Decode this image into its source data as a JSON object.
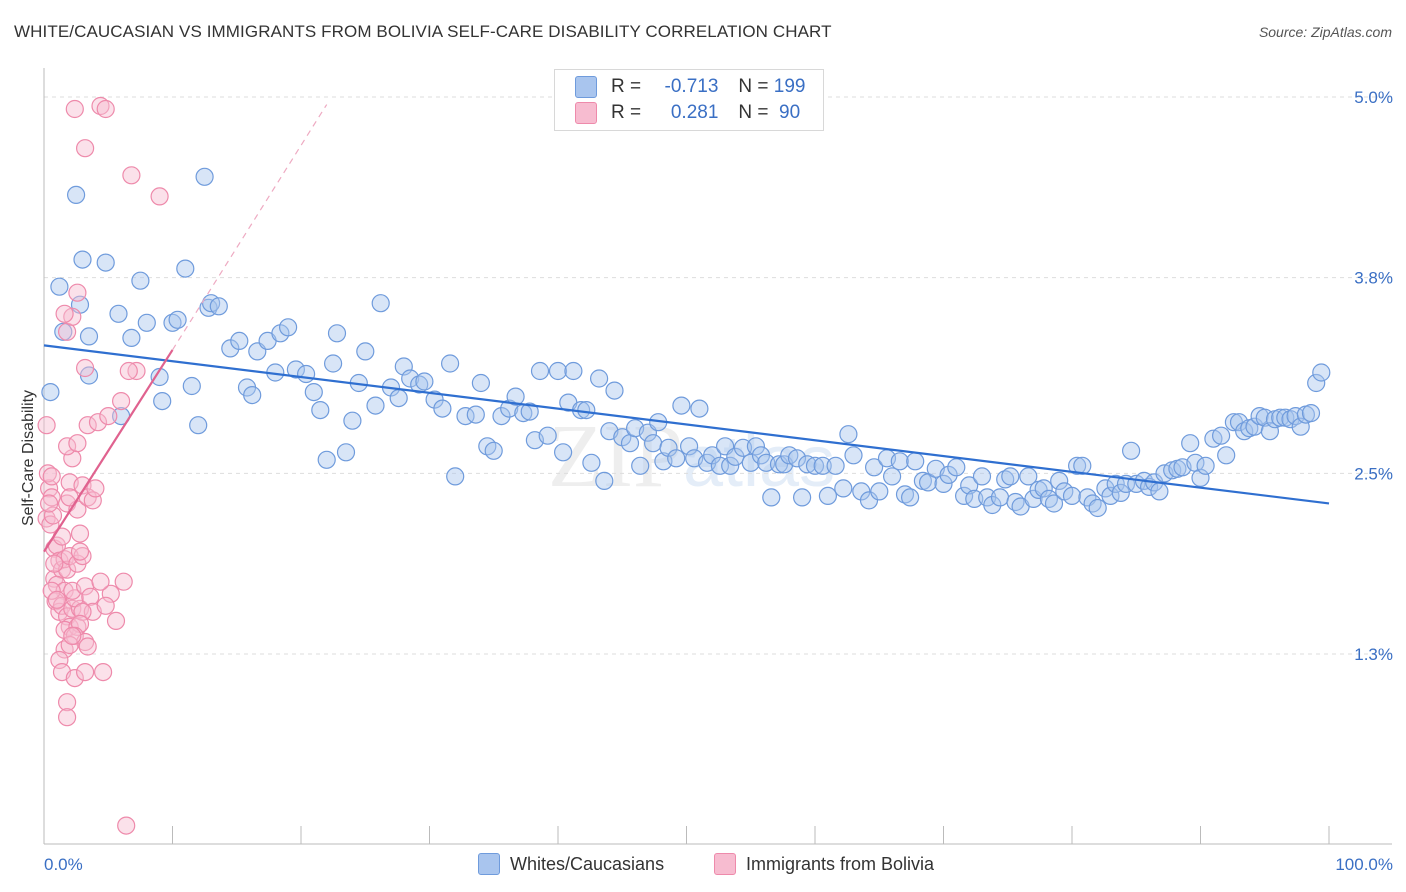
{
  "title": "WHITE/CAUCASIAN VS IMMIGRANTS FROM BOLIVIA SELF-CARE DISABILITY CORRELATION CHART",
  "source": "Source: ZipAtlas.com",
  "watermark": {
    "zip": "ZIP",
    "atlas": "atlas"
  },
  "legend": {
    "rows": [
      {
        "r_label": "R =",
        "r_value": "-0.713",
        "n_label": "N =",
        "n_value": "199",
        "color": "#a9c5ee",
        "border": "#6f9bdc"
      },
      {
        "r_label": "R =",
        "r_value": " 0.281",
        "n_label": "N =",
        "n_value": " 90",
        "color": "#f7bcd0",
        "border": "#ee8aab"
      }
    ]
  },
  "bottom_legend": [
    {
      "label": "Whites/Caucasians",
      "color": "#a9c5ee",
      "border": "#6f9bdc"
    },
    {
      "label": "Immigrants from Bolivia",
      "color": "#f7bcd0",
      "border": "#ee8aab"
    }
  ],
  "chart_data": {
    "type": "scatter",
    "title": "WHITE/CAUCASIAN VS IMMIGRANTS FROM BOLIVIA SELF-CARE DISABILITY CORRELATION CHART",
    "xlabel": "",
    "ylabel": "Self-Care Disability",
    "x_tick_labels": [
      "0.0%",
      "100.0%"
    ],
    "y_tick_labels": [
      "1.3%",
      "2.5%",
      "3.8%",
      "5.0%"
    ],
    "y_ticks": [
      1.3,
      2.5,
      3.8,
      5.0
    ],
    "xlim": [
      0,
      100
    ],
    "ylim": [
      0.0,
      5.0
    ],
    "grid": true,
    "series": [
      {
        "name": "Whites/Caucasians",
        "color": "#6f9bdc",
        "fill": "#a9c5ee",
        "trend": {
          "x": [
            0,
            100
          ],
          "y": [
            3.35,
            2.3
          ]
        },
        "points": [
          [
            0.5,
            3.04
          ],
          [
            2.5,
            4.35
          ],
          [
            3.0,
            3.92
          ],
          [
            3.5,
            3.15
          ],
          [
            1.2,
            3.74
          ],
          [
            2.8,
            3.62
          ],
          [
            3.5,
            3.41
          ],
          [
            1.5,
            3.44
          ],
          [
            4.8,
            3.9
          ],
          [
            5.8,
            3.56
          ],
          [
            6.8,
            3.4
          ],
          [
            7.5,
            3.78
          ],
          [
            6.0,
            2.88
          ],
          [
            8.0,
            3.5
          ],
          [
            9.0,
            3.14
          ],
          [
            9.2,
            2.98
          ],
          [
            10.0,
            3.5
          ],
          [
            10.4,
            3.52
          ],
          [
            11.0,
            3.86
          ],
          [
            11.5,
            3.08
          ],
          [
            12.0,
            2.82
          ],
          [
            12.5,
            4.47
          ],
          [
            12.8,
            3.6
          ],
          [
            13.0,
            3.63
          ],
          [
            13.6,
            3.61
          ],
          [
            14.5,
            3.33
          ],
          [
            15.2,
            3.38
          ],
          [
            15.8,
            3.07
          ],
          [
            16.2,
            3.02
          ],
          [
            16.6,
            3.31
          ],
          [
            17.4,
            3.38
          ],
          [
            18.0,
            3.17
          ],
          [
            18.4,
            3.43
          ],
          [
            19.0,
            3.47
          ],
          [
            19.6,
            3.19
          ],
          [
            20.4,
            3.16
          ],
          [
            21.0,
            3.04
          ],
          [
            21.5,
            2.92
          ],
          [
            22.0,
            2.59
          ],
          [
            22.5,
            3.23
          ],
          [
            22.8,
            3.43
          ],
          [
            23.5,
            2.64
          ],
          [
            24.0,
            2.85
          ],
          [
            24.5,
            3.1
          ],
          [
            25.0,
            3.31
          ],
          [
            25.8,
            2.95
          ],
          [
            26.2,
            3.63
          ],
          [
            27.0,
            3.07
          ],
          [
            27.6,
            3.0
          ],
          [
            28.0,
            3.21
          ],
          [
            28.5,
            3.13
          ],
          [
            29.2,
            3.09
          ],
          [
            29.6,
            3.11
          ],
          [
            30.4,
            2.99
          ],
          [
            31.0,
            2.93
          ],
          [
            31.6,
            3.23
          ],
          [
            32.0,
            2.48
          ],
          [
            32.8,
            2.88
          ],
          [
            33.6,
            2.89
          ],
          [
            34.0,
            3.1
          ],
          [
            34.5,
            2.68
          ],
          [
            35.0,
            2.65
          ],
          [
            35.6,
            2.88
          ],
          [
            36.2,
            2.93
          ],
          [
            36.7,
            3.01
          ],
          [
            37.3,
            2.9
          ],
          [
            37.8,
            2.91
          ],
          [
            38.2,
            2.72
          ],
          [
            38.6,
            3.18
          ],
          [
            39.2,
            2.75
          ],
          [
            40.0,
            3.18
          ],
          [
            40.4,
            2.64
          ],
          [
            40.8,
            2.97
          ],
          [
            41.2,
            3.18
          ],
          [
            41.8,
            2.92
          ],
          [
            42.2,
            2.92
          ],
          [
            42.6,
            2.57
          ],
          [
            43.2,
            3.13
          ],
          [
            43.6,
            2.45
          ],
          [
            44.0,
            2.78
          ],
          [
            44.4,
            3.05
          ],
          [
            45.0,
            2.74
          ],
          [
            45.6,
            2.7
          ],
          [
            46.0,
            2.8
          ],
          [
            46.4,
            2.55
          ],
          [
            47.0,
            2.77
          ],
          [
            47.4,
            2.7
          ],
          [
            47.8,
            2.84
          ],
          [
            48.2,
            2.58
          ],
          [
            48.6,
            2.67
          ],
          [
            49.2,
            2.6
          ],
          [
            49.6,
            2.95
          ],
          [
            50.2,
            2.68
          ],
          [
            50.6,
            2.6
          ],
          [
            51.0,
            2.93
          ],
          [
            51.6,
            2.57
          ],
          [
            52.0,
            2.62
          ],
          [
            52.6,
            2.55
          ],
          [
            53.0,
            2.68
          ],
          [
            53.4,
            2.55
          ],
          [
            53.8,
            2.61
          ],
          [
            54.4,
            2.67
          ],
          [
            55.0,
            2.57
          ],
          [
            55.4,
            2.68
          ],
          [
            55.8,
            2.62
          ],
          [
            56.2,
            2.57
          ],
          [
            56.6,
            2.34
          ],
          [
            57.2,
            2.56
          ],
          [
            57.6,
            2.56
          ],
          [
            58.0,
            2.62
          ],
          [
            58.6,
            2.6
          ],
          [
            59.0,
            2.34
          ],
          [
            59.4,
            2.56
          ],
          [
            60.0,
            2.55
          ],
          [
            60.6,
            2.55
          ],
          [
            61.0,
            2.35
          ],
          [
            61.6,
            2.55
          ],
          [
            62.2,
            2.4
          ],
          [
            62.6,
            2.76
          ],
          [
            63.0,
            2.62
          ],
          [
            63.6,
            2.38
          ],
          [
            64.2,
            2.32
          ],
          [
            64.6,
            2.54
          ],
          [
            65.0,
            2.38
          ],
          [
            65.6,
            2.6
          ],
          [
            66.0,
            2.48
          ],
          [
            66.6,
            2.58
          ],
          [
            67.0,
            2.36
          ],
          [
            67.4,
            2.34
          ],
          [
            67.8,
            2.58
          ],
          [
            68.4,
            2.45
          ],
          [
            68.8,
            2.44
          ],
          [
            69.4,
            2.53
          ],
          [
            70.0,
            2.43
          ],
          [
            70.4,
            2.49
          ],
          [
            71.0,
            2.54
          ],
          [
            71.6,
            2.35
          ],
          [
            72.0,
            2.42
          ],
          [
            72.4,
            2.33
          ],
          [
            73.0,
            2.48
          ],
          [
            73.4,
            2.34
          ],
          [
            73.8,
            2.29
          ],
          [
            74.4,
            2.34
          ],
          [
            74.8,
            2.46
          ],
          [
            75.2,
            2.48
          ],
          [
            75.6,
            2.31
          ],
          [
            76.0,
            2.28
          ],
          [
            76.6,
            2.48
          ],
          [
            77.0,
            2.33
          ],
          [
            77.4,
            2.39
          ],
          [
            77.8,
            2.4
          ],
          [
            78.2,
            2.33
          ],
          [
            78.6,
            2.3
          ],
          [
            79.0,
            2.45
          ],
          [
            79.4,
            2.38
          ],
          [
            80.0,
            2.35
          ],
          [
            80.4,
            2.55
          ],
          [
            80.8,
            2.55
          ],
          [
            81.2,
            2.34
          ],
          [
            81.6,
            2.3
          ],
          [
            82.0,
            2.27
          ],
          [
            82.6,
            2.4
          ],
          [
            83.0,
            2.35
          ],
          [
            83.4,
            2.43
          ],
          [
            83.8,
            2.37
          ],
          [
            84.2,
            2.43
          ],
          [
            84.6,
            2.65
          ],
          [
            85.0,
            2.43
          ],
          [
            85.6,
            2.45
          ],
          [
            86.0,
            2.41
          ],
          [
            86.4,
            2.44
          ],
          [
            86.8,
            2.38
          ],
          [
            87.2,
            2.5
          ],
          [
            87.8,
            2.52
          ],
          [
            88.2,
            2.53
          ],
          [
            88.6,
            2.54
          ],
          [
            89.2,
            2.7
          ],
          [
            89.6,
            2.57
          ],
          [
            90.0,
            2.47
          ],
          [
            90.4,
            2.55
          ],
          [
            91.0,
            2.73
          ],
          [
            91.6,
            2.75
          ],
          [
            92.0,
            2.62
          ],
          [
            92.6,
            2.84
          ],
          [
            93.0,
            2.84
          ],
          [
            93.4,
            2.78
          ],
          [
            93.8,
            2.8
          ],
          [
            94.2,
            2.81
          ],
          [
            94.6,
            2.88
          ],
          [
            95.0,
            2.87
          ],
          [
            95.4,
            2.78
          ],
          [
            95.8,
            2.86
          ],
          [
            96.2,
            2.87
          ],
          [
            96.6,
            2.87
          ],
          [
            97.0,
            2.86
          ],
          [
            97.4,
            2.88
          ],
          [
            97.8,
            2.81
          ],
          [
            98.2,
            2.89
          ],
          [
            98.6,
            2.9
          ],
          [
            99.0,
            3.1
          ],
          [
            99.4,
            3.17
          ]
        ]
      },
      {
        "name": "Immigrants from Bolivia",
        "color": "#ee8aab",
        "fill": "#f7bcd0",
        "trend": {
          "x": [
            0,
            10
          ],
          "y": [
            1.98,
            3.32
          ]
        },
        "trend_ext": {
          "x": [
            10,
            22
          ],
          "y": [
            3.32,
            4.95
          ]
        },
        "points": [
          [
            0.2,
            2.82
          ],
          [
            0.4,
            2.4
          ],
          [
            0.6,
            2.34
          ],
          [
            0.3,
            2.5
          ],
          [
            0.2,
            2.2
          ],
          [
            0.5,
            2.16
          ],
          [
            0.7,
            2.22
          ],
          [
            0.8,
            2.0
          ],
          [
            0.6,
            2.48
          ],
          [
            0.4,
            2.3
          ],
          [
            1.0,
            2.02
          ],
          [
            1.2,
            1.92
          ],
          [
            0.8,
            1.8
          ],
          [
            1.4,
            1.86
          ],
          [
            1.0,
            1.76
          ],
          [
            1.6,
            1.93
          ],
          [
            1.8,
            1.86
          ],
          [
            2.0,
            1.95
          ],
          [
            1.6,
            1.72
          ],
          [
            0.9,
            1.65
          ],
          [
            1.2,
            1.58
          ],
          [
            1.4,
            1.62
          ],
          [
            1.8,
            1.55
          ],
          [
            2.2,
            1.6
          ],
          [
            2.0,
            1.48
          ],
          [
            1.6,
            1.46
          ],
          [
            2.6,
            1.48
          ],
          [
            2.8,
            1.6
          ],
          [
            2.4,
            1.67
          ],
          [
            2.2,
            1.72
          ],
          [
            2.6,
            1.9
          ],
          [
            3.0,
            1.95
          ],
          [
            3.2,
            1.75
          ],
          [
            3.6,
            1.68
          ],
          [
            3.8,
            1.58
          ],
          [
            3.0,
            1.58
          ],
          [
            2.8,
            1.5
          ],
          [
            2.4,
            1.42
          ],
          [
            3.2,
            1.38
          ],
          [
            3.4,
            1.35
          ],
          [
            1.6,
            1.33
          ],
          [
            2.0,
            1.36
          ],
          [
            2.2,
            1.42
          ],
          [
            1.2,
            1.26
          ],
          [
            1.4,
            1.18
          ],
          [
            2.4,
            1.14
          ],
          [
            3.2,
            1.18
          ],
          [
            4.6,
            1.18
          ],
          [
            1.8,
            0.98
          ],
          [
            1.8,
            0.88
          ],
          [
            6.4,
            0.16
          ],
          [
            2.0,
            2.44
          ],
          [
            2.2,
            2.6
          ],
          [
            1.8,
            2.3
          ],
          [
            2.6,
            2.26
          ],
          [
            3.0,
            2.42
          ],
          [
            3.4,
            2.34
          ],
          [
            3.8,
            2.32
          ],
          [
            4.0,
            2.4
          ],
          [
            2.8,
            2.1
          ],
          [
            1.4,
            2.08
          ],
          [
            1.8,
            2.68
          ],
          [
            2.6,
            2.7
          ],
          [
            3.4,
            2.82
          ],
          [
            4.2,
            2.84
          ],
          [
            5.0,
            2.88
          ],
          [
            6.0,
            2.98
          ],
          [
            7.2,
            3.18
          ],
          [
            1.8,
            3.44
          ],
          [
            2.2,
            3.54
          ],
          [
            2.6,
            3.7
          ],
          [
            3.2,
            4.66
          ],
          [
            2.4,
            4.92
          ],
          [
            4.4,
            4.94
          ],
          [
            4.8,
            4.92
          ],
          [
            6.8,
            4.48
          ],
          [
            9.0,
            4.34
          ],
          [
            6.6,
            3.18
          ],
          [
            3.2,
            3.2
          ],
          [
            1.6,
            3.56
          ],
          [
            5.2,
            1.7
          ],
          [
            6.2,
            1.78
          ],
          [
            5.6,
            1.52
          ],
          [
            4.4,
            1.78
          ],
          [
            4.8,
            1.62
          ],
          [
            0.8,
            1.9
          ],
          [
            0.6,
            1.72
          ],
          [
            1.0,
            1.66
          ],
          [
            2.0,
            2.34
          ],
          [
            2.8,
            1.98
          ]
        ]
      }
    ]
  }
}
